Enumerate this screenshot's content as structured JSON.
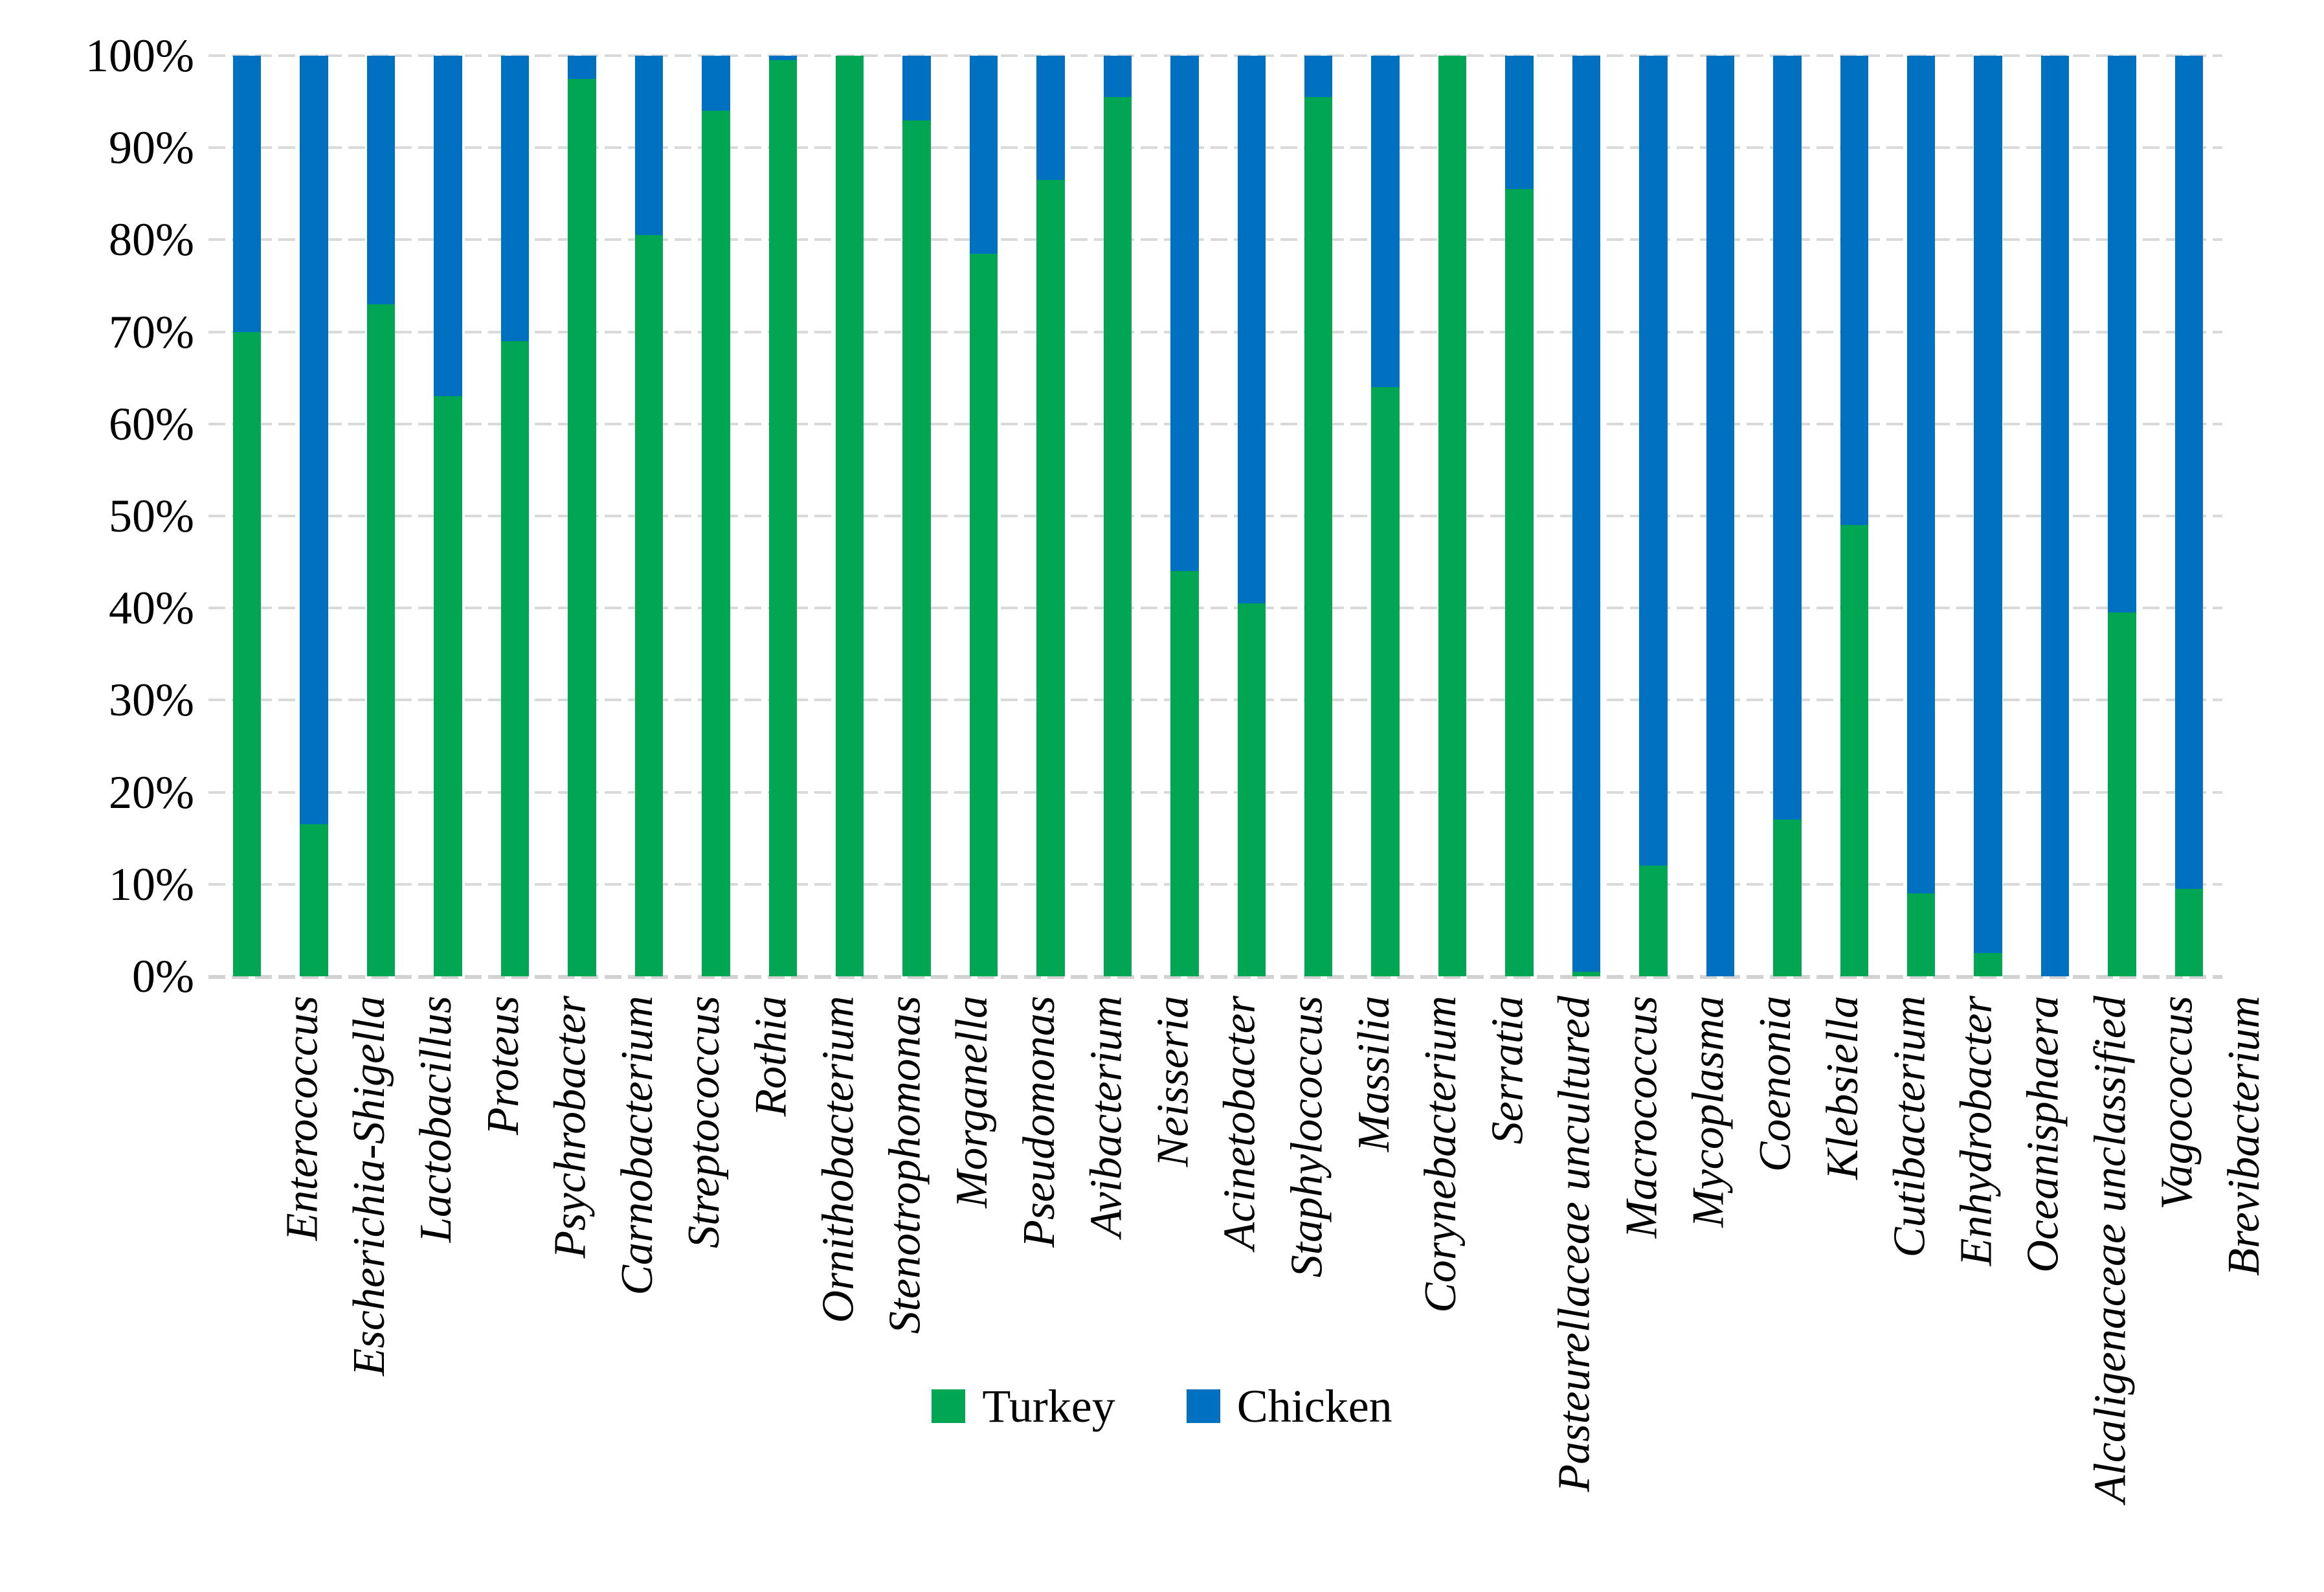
{
  "chart_data": {
    "type": "bar",
    "subtype": "stacked-100-percent",
    "title": "",
    "xlabel": "",
    "ylabel": "",
    "grid": true,
    "grid_color": "#d9d9d9",
    "background": "#ffffff",
    "legend_position": "bottom",
    "y_axis": {
      "min": 0,
      "max": 100,
      "tick_labels": [
        "100%",
        "90%",
        "80%",
        "70%",
        "60%",
        "50%",
        "40%",
        "30%",
        "20%",
        "10%",
        "0%"
      ]
    },
    "categories": [
      "Enterococcus",
      "Escherichia-Shigella",
      "Lactobacillus",
      "Proteus",
      "Psychrobacter",
      "Carnobacterium",
      "Streptococcus",
      "Rothia",
      "Ornithobacterium",
      "Stenotrophomonas",
      "Morganella",
      "Pseudomonas",
      "Avibacterium",
      "Neisseria",
      "Acinetobacter",
      "Staphylococcus",
      "Massilia",
      "Corynebacterium",
      "Serratia",
      "Pasteurellaceae uncultured",
      "Macrococcus",
      "Mycoplasma",
      "Coenonia",
      "Klebsiella",
      "Cutibacterium",
      "Enhydrobacter",
      "Oceanisphaera",
      "Alcaligenaceae unclassified",
      "Vagococcus",
      "Brevibacterium"
    ],
    "series": [
      {
        "name": "Turkey",
        "color": "#00A651",
        "values": [
          70,
          16.5,
          73,
          63,
          69,
          97.5,
          80.5,
          94,
          99.5,
          100,
          93,
          78.5,
          86.5,
          95.5,
          44,
          40.5,
          95.5,
          64,
          100,
          85.5,
          0.5,
          12,
          0,
          17,
          49,
          9,
          2.5,
          0,
          39.5,
          9.5
        ]
      },
      {
        "name": "Chicken",
        "color": "#0070C0",
        "values": [
          30,
          83.5,
          27,
          37,
          31,
          2.5,
          19.5,
          6,
          0.5,
          0,
          7,
          21.5,
          13.5,
          4.5,
          56,
          59.5,
          4.5,
          36,
          0,
          14.5,
          99.5,
          88,
          100,
          83,
          51,
          91,
          97.5,
          100,
          60.5,
          90.5
        ]
      }
    ]
  }
}
